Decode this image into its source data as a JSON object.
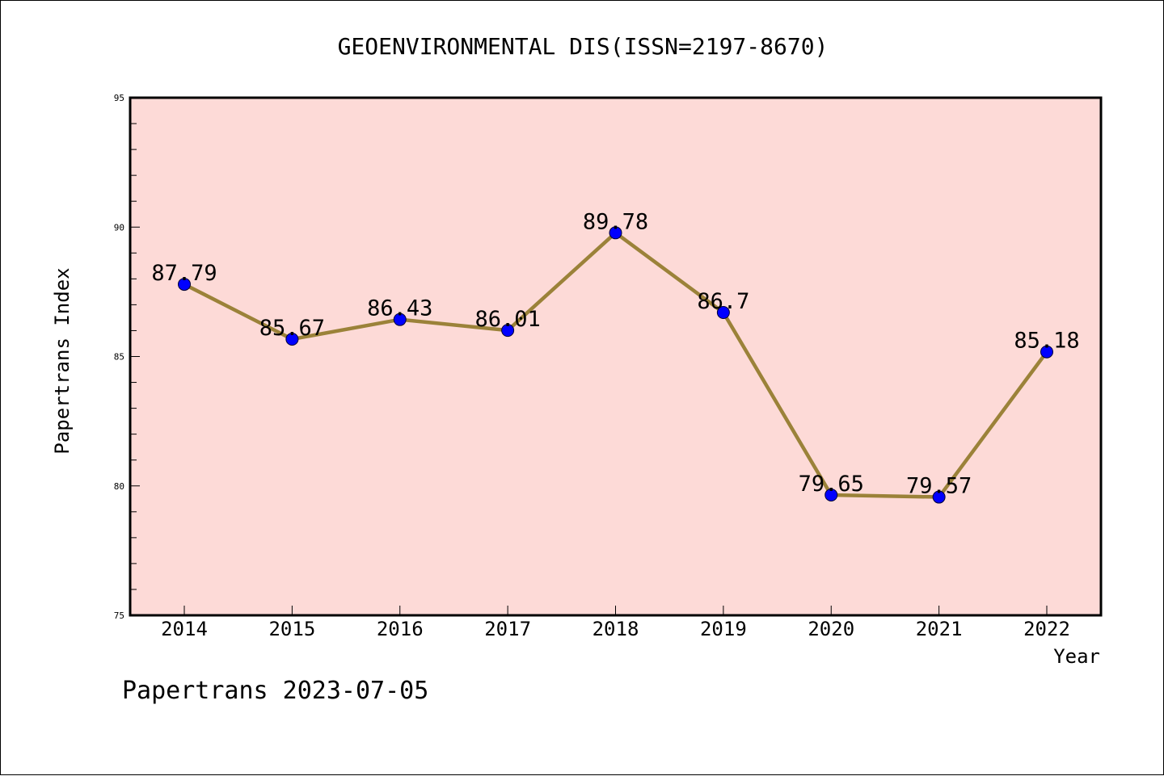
{
  "chart_data": {
    "type": "line",
    "title": "GEOENVIRONMENTAL DIS(ISSN=2197-8670)",
    "xlabel": "Year",
    "ylabel": "Papertrans Index",
    "categories": [
      "2014",
      "2015",
      "2016",
      "2017",
      "2018",
      "2019",
      "2020",
      "2021",
      "2022"
    ],
    "values": [
      87.79,
      85.67,
      86.43,
      86.01,
      89.78,
      86.7,
      79.65,
      79.57,
      85.18
    ],
    "data_labels": [
      "87.79",
      "85.67",
      "86.43",
      "86.01",
      "89.78",
      "86.7",
      "79.65",
      "79.57",
      "85.18"
    ],
    "ylim": [
      75,
      95
    ],
    "yticks": [
      75,
      80,
      85,
      90,
      95
    ],
    "grid": false,
    "colors": {
      "plot_background": "#fddad7",
      "line": "#9b8239",
      "marker": "#0000ff"
    }
  },
  "footer": "Papertrans 2023-07-05"
}
